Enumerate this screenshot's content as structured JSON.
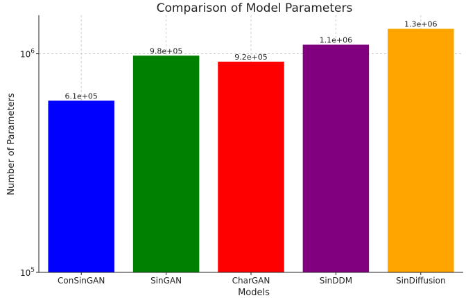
{
  "chart_data": {
    "type": "bar",
    "title": "Comparison of Model Parameters",
    "xlabel": "Models",
    "ylabel": "Number of Parameters",
    "yscale": "log",
    "ylim": [
      100000,
      1500000
    ],
    "y_ticks": [
      {
        "value": 100000,
        "base": "10",
        "exp": "5"
      },
      {
        "value": 1000000,
        "base": "10",
        "exp": "6"
      }
    ],
    "grid": true,
    "categories": [
      "ConSinGAN",
      "SinGAN",
      "CharGAN",
      "SinDDM",
      "SinDiffusion"
    ],
    "values": [
      610000,
      980000,
      920000,
      1100000,
      1300000
    ],
    "value_labels": [
      "6.1e+05",
      "9.8e+05",
      "9.2e+05",
      "1.1e+06",
      "1.3e+06"
    ],
    "colors": [
      "#0000ff",
      "#008000",
      "#ff0000",
      "#800080",
      "#ffa500"
    ]
  }
}
